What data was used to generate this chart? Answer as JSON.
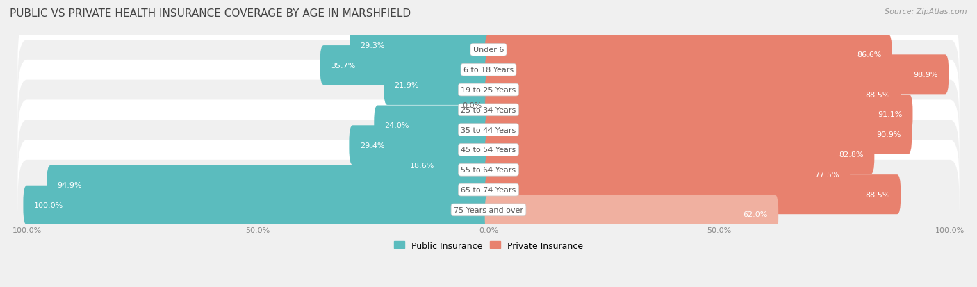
{
  "title": "PUBLIC VS PRIVATE HEALTH INSURANCE COVERAGE BY AGE IN MARSHFIELD",
  "source": "Source: ZipAtlas.com",
  "categories": [
    "Under 6",
    "6 to 18 Years",
    "19 to 25 Years",
    "25 to 34 Years",
    "35 to 44 Years",
    "45 to 54 Years",
    "55 to 64 Years",
    "65 to 74 Years",
    "75 Years and over"
  ],
  "public_values": [
    29.3,
    35.7,
    21.9,
    0.0,
    24.0,
    29.4,
    18.6,
    94.9,
    100.0
  ],
  "private_values": [
    86.6,
    98.9,
    88.5,
    91.1,
    90.9,
    82.8,
    77.5,
    88.5,
    62.0
  ],
  "public_color": "#5bbcbe",
  "private_color": "#e8816e",
  "private_color_light": "#f0b0a0",
  "row_bg_colors": [
    "#f0f0f0",
    "#ffffff"
  ],
  "title_color": "#444444",
  "source_color": "#999999",
  "category_label_color": "#555555",
  "value_text_white_threshold": 8.0,
  "bar_height": 0.38,
  "bar_gap": 0.08,
  "max_value": 100.0,
  "xlim": 100.0,
  "figsize": [
    14.06,
    4.14
  ],
  "dpi": 100,
  "title_fontsize": 11,
  "source_fontsize": 8,
  "value_fontsize": 8,
  "category_fontsize": 8,
  "legend_fontsize": 9,
  "xtick_fontsize": 8,
  "xtick_labels": [
    "100.0%",
    "50.0%",
    "0.0%",
    "50.0%",
    "100.0%"
  ],
  "xtick_positions": [
    -100,
    -50,
    0,
    50,
    100
  ]
}
